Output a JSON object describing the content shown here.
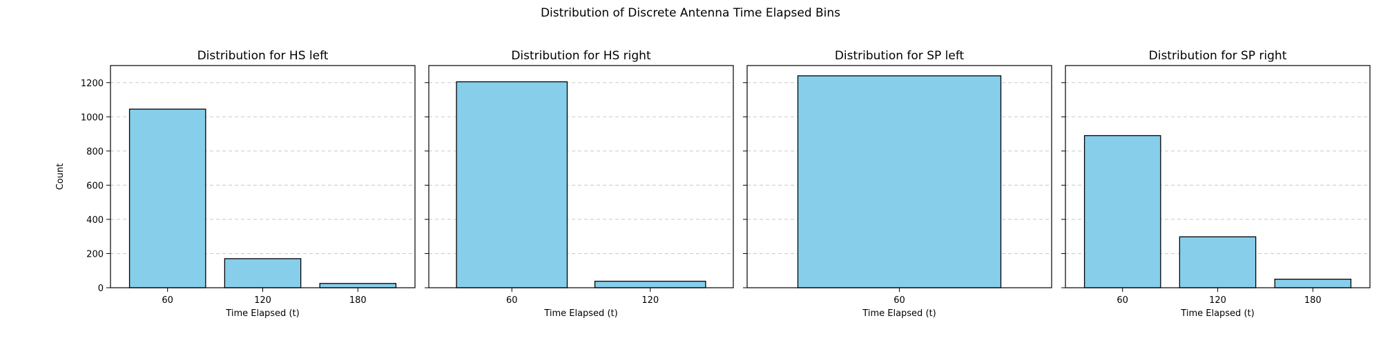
{
  "figure": {
    "title": "Distribution of Discrete Antenna Time Elapsed Bins",
    "colors": {
      "bar_fill": "#87ceeb",
      "bar_edge": "#000000",
      "grid": "#c8c8c8"
    }
  },
  "chart_data": [
    {
      "type": "bar",
      "title": "Distribution for HS left",
      "xlabel": "Time Elapsed (t)",
      "ylabel": "Count",
      "categories": [
        "60",
        "120",
        "180"
      ],
      "values": [
        1045,
        170,
        25
      ],
      "ylim": [
        0,
        1300
      ],
      "yticks": [
        0,
        200,
        400,
        600,
        800,
        1000,
        1200
      ],
      "grid": "y-dashed"
    },
    {
      "type": "bar",
      "title": "Distribution for HS right",
      "xlabel": "Time Elapsed (t)",
      "ylabel": "",
      "categories": [
        "60",
        "120"
      ],
      "values": [
        1205,
        38
      ],
      "ylim": [
        0,
        1300
      ],
      "yticks": [
        0,
        200,
        400,
        600,
        800,
        1000,
        1200
      ],
      "grid": "y-dashed"
    },
    {
      "type": "bar",
      "title": "Distribution for SP left",
      "xlabel": "Time Elapsed (t)",
      "ylabel": "",
      "categories": [
        "60"
      ],
      "values": [
        1240
      ],
      "ylim": [
        0,
        1300
      ],
      "yticks": [
        0,
        200,
        400,
        600,
        800,
        1000,
        1200
      ],
      "grid": "y-dashed"
    },
    {
      "type": "bar",
      "title": "Distribution for SP right",
      "xlabel": "Time Elapsed (t)",
      "ylabel": "",
      "categories": [
        "60",
        "120",
        "180"
      ],
      "values": [
        890,
        298,
        50
      ],
      "ylim": [
        0,
        1300
      ],
      "yticks": [
        0,
        200,
        400,
        600,
        800,
        1000,
        1200
      ],
      "grid": "y-dashed"
    }
  ]
}
